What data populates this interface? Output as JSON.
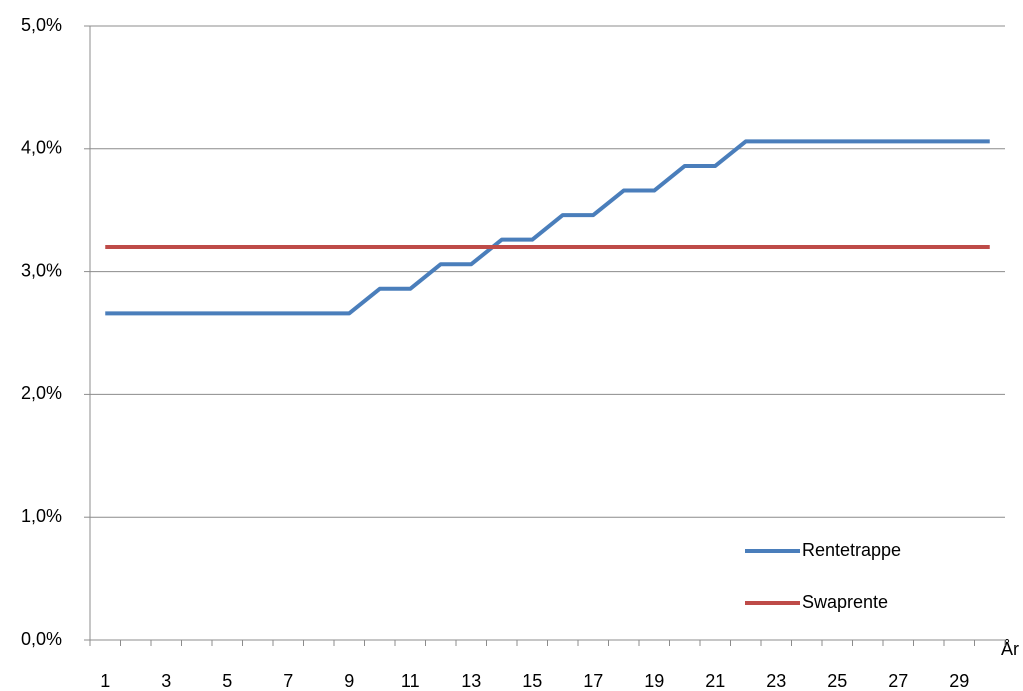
{
  "chart_data": {
    "type": "line",
    "x_label": "År",
    "categories": [
      1,
      null,
      3,
      null,
      5,
      null,
      7,
      null,
      9,
      null,
      11,
      null,
      13,
      null,
      15,
      null,
      17,
      null,
      19,
      null,
      21,
      null,
      23,
      null,
      25,
      null,
      27,
      null,
      29,
      null
    ],
    "series": [
      {
        "name": "Rentetrappe",
        "color": "#4a7ebb",
        "values": [
          2.66,
          2.66,
          2.66,
          2.66,
          2.66,
          2.66,
          2.66,
          2.66,
          2.66,
          2.86,
          2.86,
          3.06,
          3.06,
          3.26,
          3.26,
          3.46,
          3.46,
          3.66,
          3.66,
          3.86,
          3.86,
          4.06,
          4.06,
          4.06,
          4.06,
          4.06,
          4.06,
          4.06,
          4.06,
          4.06
        ]
      },
      {
        "name": "Swaprente",
        "color": "#be4b48",
        "values": [
          3.2,
          3.2,
          3.2,
          3.2,
          3.2,
          3.2,
          3.2,
          3.2,
          3.2,
          3.2,
          3.2,
          3.2,
          3.2,
          3.2,
          3.2,
          3.2,
          3.2,
          3.2,
          3.2,
          3.2,
          3.2,
          3.2,
          3.2,
          3.2,
          3.2,
          3.2,
          3.2,
          3.2,
          3.2,
          3.2
        ]
      }
    ],
    "ylim": [
      0,
      5
    ],
    "yticks": [
      {
        "value": 0,
        "label": "0,0%"
      },
      {
        "value": 1,
        "label": "1,0%"
      },
      {
        "value": 2,
        "label": "2,0%"
      },
      {
        "value": 3,
        "label": "3,0%"
      },
      {
        "value": 4,
        "label": "4,0%"
      },
      {
        "value": 5,
        "label": "5,0%"
      }
    ],
    "grid": true,
    "legend": "lower right"
  }
}
